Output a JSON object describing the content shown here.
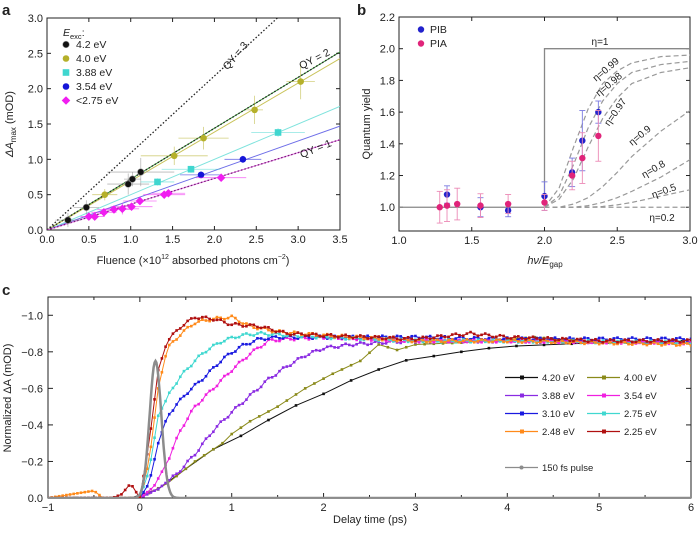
{
  "chart_data": [
    {
      "type": "scatter",
      "panel_label": "a",
      "xlabel": {
        "main": "Fluence (×10",
        "sup": "12",
        "mid": " absorbed photons cm",
        "sup2": "−2",
        "end": ")"
      },
      "ylabel": {
        "pre": "ΔA",
        "sub": "max",
        "post": " (mOD)"
      },
      "xlim": [
        0,
        3.5
      ],
      "ylim": [
        0,
        3.0
      ],
      "xticks": [
        "0.0",
        "0.5",
        "1.0",
        "1.5",
        "2.0",
        "2.5",
        "3.0",
        "3.5"
      ],
      "yticks": [
        "0.0",
        "0.5",
        "1.0",
        "1.5",
        "2.0",
        "2.5",
        "3.0"
      ],
      "legend_title": {
        "main": "E",
        "sub": "exc",
        "end": ":"
      },
      "legend_position": "top-left",
      "series": [
        {
          "name": "4.2 eV",
          "color": "#111111",
          "marker": "circle",
          "points": [
            [
              0.25,
              0.14,
              0.15,
              0.1
            ],
            [
              0.47,
              0.32,
              0.15,
              0.1
            ],
            [
              0.97,
              0.65,
              0.25,
              0.15
            ],
            [
              1.02,
              0.72,
              0.1,
              0.1
            ],
            [
              1.12,
              0.82,
              0.4,
              0.2
            ]
          ]
        },
        {
          "name": "4.0 eV",
          "color": "#b5b02a",
          "marker": "circle",
          "points": [
            [
              0.69,
              0.5,
              0.15,
              0.08
            ],
            [
              1.52,
              1.05,
              0.4,
              0.13
            ],
            [
              1.87,
              1.3,
              0.3,
              0.16
            ],
            [
              2.48,
              1.7,
              0.1,
              0.2
            ],
            [
              3.03,
              2.1,
              0.17,
              0.25
            ]
          ]
        },
        {
          "name": "3.88 eV",
          "color": "#3fd6cf",
          "marker": "square",
          "points": [
            [
              1.32,
              0.68,
              0.2,
              0.05
            ],
            [
              1.72,
              0.86,
              0.35,
              0.05
            ],
            [
              2.76,
              1.38,
              0.32,
              0.06
            ]
          ]
        },
        {
          "name": "3.54 eV",
          "color": "#1515d8",
          "marker": "circle",
          "points": [
            [
              1.84,
              0.78,
              0.25,
              0.05
            ],
            [
              2.34,
              1.0,
              0.22,
              0.05
            ]
          ]
        },
        {
          "name": "<2.75 eV",
          "color": "#f01ef0",
          "marker": "diamond",
          "points": [
            [
              0.5,
              0.19,
              0.1,
              0.04
            ],
            [
              0.57,
              0.19,
              0.12,
              0.05
            ],
            [
              0.68,
              0.25,
              0.15,
              0.05
            ],
            [
              0.8,
              0.29,
              0.2,
              0.05
            ],
            [
              0.9,
              0.3,
              0.2,
              0.08
            ],
            [
              1.01,
              0.33,
              0.25,
              0.05
            ],
            [
              1.11,
              0.41,
              0.2,
              0.05
            ],
            [
              1.4,
              0.5,
              0.25,
              0.05
            ],
            [
              1.45,
              0.52,
              0.2,
              0.05
            ],
            [
              2.08,
              0.74,
              0.3,
              0.05
            ]
          ]
        }
      ],
      "fits": [
        {
          "slope": 0.72,
          "color": "#3a9a3a"
        },
        {
          "slope": 0.693,
          "color": "#c9c35a"
        },
        {
          "slope": 0.5,
          "color": "#7fe3dd"
        },
        {
          "slope": 0.42,
          "color": "#6e6ee8"
        },
        {
          "slope": 0.365,
          "color": "#e070e0"
        }
      ],
      "reference_lines": [
        {
          "label": "QY = 3",
          "slope": 1.09,
          "color": "#222222"
        },
        {
          "label": "QY = 2",
          "slope": 0.72,
          "color": "#222222"
        },
        {
          "label": "QY = 1",
          "slope": 0.365,
          "color": "#7a1a7a"
        }
      ]
    },
    {
      "type": "scatter",
      "panel_label": "b",
      "xlabel": {
        "main": "hν/E",
        "sub": "gap"
      },
      "ylabel": "Quantum yield",
      "xlim": [
        1.0,
        3.0
      ],
      "ylim": [
        0.85,
        2.2
      ],
      "xticks": [
        "1.0",
        "1.5",
        "2.0",
        "2.5",
        "3.0"
      ],
      "yticks": [
        "1.0",
        "1.2",
        "1.4",
        "1.6",
        "1.8",
        "2.0",
        "2.2"
      ],
      "legend_position": "top-left",
      "series": [
        {
          "name": "PIB",
          "color": "#2222cc",
          "errcolor": "#7a7ae0",
          "points": [
            [
              1.33,
              1.08,
              0.055
            ],
            [
              1.56,
              1.0,
              0.06
            ],
            [
              1.75,
              0.98,
              0.04
            ],
            [
              2.0,
              1.07,
              0.09
            ],
            [
              2.19,
              1.22,
              0.09
            ],
            [
              2.26,
              1.42,
              0.19
            ],
            [
              2.37,
              1.6,
              0.07
            ]
          ]
        },
        {
          "name": "PIA",
          "color": "#e0247a",
          "errcolor": "#ec8ab6",
          "points": [
            [
              1.28,
              1.0,
              0.1
            ],
            [
              1.33,
              1.01,
              0.1
            ],
            [
              1.4,
              1.02,
              0.1
            ],
            [
              1.56,
              1.01,
              0.075
            ],
            [
              1.75,
              1.02,
              0.06
            ],
            [
              2.0,
              1.03,
              0.05
            ],
            [
              2.19,
              1.2,
              0.09
            ],
            [
              2.26,
              1.31,
              0.16
            ],
            [
              2.37,
              1.45,
              0.16
            ]
          ]
        }
      ],
      "model_x": [
        2.0,
        2.1,
        2.2,
        2.3,
        2.4,
        2.5,
        2.6,
        2.8,
        3.0
      ],
      "model_curves": [
        {
          "label": "η=0.99",
          "y": [
            1.0,
            1.12,
            1.38,
            1.62,
            1.78,
            1.86,
            1.91,
            1.95,
            1.96
          ]
        },
        {
          "label": "η=0.98",
          "y": [
            1.0,
            1.07,
            1.27,
            1.5,
            1.67,
            1.78,
            1.85,
            1.9,
            1.92
          ]
        },
        {
          "label": "η=0.97",
          "y": [
            1.0,
            1.05,
            1.18,
            1.38,
            1.56,
            1.69,
            1.78,
            1.85,
            1.88
          ]
        },
        {
          "label": "η=0.9",
          "y": [
            1.0,
            1.0,
            1.02,
            1.06,
            1.13,
            1.22,
            1.32,
            1.48,
            1.61
          ]
        },
        {
          "label": "η=0.8",
          "y": [
            1.0,
            1.0,
            1.0,
            1.01,
            1.03,
            1.06,
            1.1,
            1.19,
            1.3
          ]
        },
        {
          "label": "η=0.5",
          "y": [
            1.0,
            1.0,
            1.0,
            1.0,
            1.005,
            1.015,
            1.03,
            1.07,
            1.11
          ]
        },
        {
          "label": "η=0.2",
          "y": [
            1.0,
            1.0,
            1.0,
            1.0,
            1.0,
            1.0,
            1.0,
            1.0,
            1.0
          ]
        }
      ],
      "step_curve": {
        "label": "η=1",
        "threshold": 2.0,
        "low": 1.0,
        "high": 2.0
      }
    },
    {
      "type": "line",
      "panel_label": "c",
      "xlabel": "Delay time (ps)",
      "ylabel": "Normalized ΔA (mOD)",
      "xlim": [
        -1,
        6
      ],
      "ylim": [
        0,
        -1.1
      ],
      "xticks": [
        "−1",
        "0",
        "1",
        "2",
        "3",
        "4",
        "5",
        "6"
      ],
      "yticks": [
        "0.0",
        "−0.2",
        "−0.4",
        "−0.6",
        "−0.8",
        "−1.0"
      ],
      "legend_position": "right",
      "series": [
        {
          "name": "4.20 eV",
          "color": "#111111",
          "points": [
            [
              -1,
              0
            ],
            [
              0,
              0
            ],
            [
              0.25,
              -0.06
            ],
            [
              0.6,
              -0.2
            ],
            [
              0.9,
              -0.3
            ],
            [
              1.2,
              -0.36
            ],
            [
              1.5,
              -0.46
            ],
            [
              1.8,
              -0.53
            ],
            [
              2.1,
              -0.59
            ],
            [
              2.4,
              -0.67
            ],
            [
              2.7,
              -0.72
            ],
            [
              3,
              -0.77
            ],
            [
              3.3,
              -0.78
            ],
            [
              3.6,
              -0.81
            ],
            [
              4,
              -0.83
            ],
            [
              4.5,
              -0.84
            ],
            [
              5,
              -0.85
            ],
            [
              6,
              -0.86
            ]
          ]
        },
        {
          "name": "4.00 eV",
          "color": "#8a8a1a",
          "points": [
            [
              -1,
              0
            ],
            [
              0,
              0
            ],
            [
              0.3,
              -0.08
            ],
            [
              0.6,
              -0.2
            ],
            [
              0.9,
              -0.3
            ],
            [
              1,
              -0.35
            ],
            [
              1.2,
              -0.42
            ],
            [
              1.5,
              -0.5
            ],
            [
              1.8,
              -0.6
            ],
            [
              2.1,
              -0.68
            ],
            [
              2.4,
              -0.75
            ],
            [
              2.6,
              -0.84
            ],
            [
              2.8,
              -0.81
            ],
            [
              3,
              -0.84
            ],
            [
              3.5,
              -0.85
            ],
            [
              4.3,
              -0.88
            ],
            [
              5,
              -0.85
            ],
            [
              6,
              -0.85
            ]
          ]
        },
        {
          "name": "3.88 eV",
          "color": "#8a2be2",
          "points": [
            [
              -1,
              0
            ],
            [
              0,
              0
            ],
            [
              0.2,
              -0.05
            ],
            [
              0.4,
              -0.13
            ],
            [
              0.6,
              -0.24
            ],
            [
              0.8,
              -0.37
            ],
            [
              1,
              -0.47
            ],
            [
              1.2,
              -0.56
            ],
            [
              1.4,
              -0.65
            ],
            [
              1.6,
              -0.72
            ],
            [
              1.8,
              -0.78
            ],
            [
              2,
              -0.82
            ],
            [
              2.3,
              -0.84
            ],
            [
              2.6,
              -0.85
            ],
            [
              3,
              -0.86
            ],
            [
              4,
              -0.86
            ],
            [
              6,
              -0.85
            ]
          ]
        },
        {
          "name": "3.54 eV",
          "color": "#f020e0",
          "points": [
            [
              -1,
              0
            ],
            [
              0,
              0
            ],
            [
              0.15,
              -0.06
            ],
            [
              0.3,
              -0.2
            ],
            [
              0.45,
              -0.38
            ],
            [
              0.6,
              -0.5
            ],
            [
              0.8,
              -0.6
            ],
            [
              1,
              -0.7
            ],
            [
              1.2,
              -0.79
            ],
            [
              1.4,
              -0.86
            ],
            [
              1.6,
              -0.87
            ],
            [
              2,
              -0.88
            ],
            [
              3,
              -0.86
            ],
            [
              4,
              -0.86
            ],
            [
              6,
              -0.85
            ]
          ]
        },
        {
          "name": "3.10 eV",
          "color": "#1a1ae0",
          "points": [
            [
              -1,
              0
            ],
            [
              0,
              0
            ],
            [
              0.1,
              -0.08
            ],
            [
              0.2,
              -0.3
            ],
            [
              0.3,
              -0.45
            ],
            [
              0.5,
              -0.57
            ],
            [
              0.7,
              -0.66
            ],
            [
              0.9,
              -0.76
            ],
            [
              1.1,
              -0.83
            ],
            [
              1.3,
              -0.87
            ],
            [
              1.5,
              -0.88
            ],
            [
              2,
              -0.88
            ],
            [
              3,
              -0.88
            ],
            [
              4,
              -0.87
            ],
            [
              6,
              -0.87
            ]
          ]
        },
        {
          "name": "2.75 eV",
          "color": "#40d8d0",
          "points": [
            [
              -1,
              0
            ],
            [
              0,
              0
            ],
            [
              0.1,
              -0.15
            ],
            [
              0.2,
              -0.45
            ],
            [
              0.35,
              -0.6
            ],
            [
              0.5,
              -0.7
            ],
            [
              0.7,
              -0.8
            ],
            [
              0.9,
              -0.86
            ],
            [
              1.1,
              -0.89
            ],
            [
              1.3,
              -0.9
            ],
            [
              2,
              -0.88
            ],
            [
              3,
              -0.86
            ],
            [
              4,
              -0.86
            ],
            [
              6,
              -0.85
            ]
          ]
        },
        {
          "name": "2.48 eV",
          "color": "#ff8a1a",
          "points": [
            [
              -1,
              0
            ],
            [
              -0.5,
              -0.04
            ],
            [
              -0.4,
              0
            ],
            [
              0,
              0
            ],
            [
              0.1,
              -0.2
            ],
            [
              0.2,
              -0.6
            ],
            [
              0.3,
              -0.82
            ],
            [
              0.45,
              -0.9
            ],
            [
              0.6,
              -0.96
            ],
            [
              0.8,
              -0.98
            ],
            [
              1,
              -0.99
            ],
            [
              1.2,
              -0.94
            ],
            [
              1.5,
              -0.91
            ],
            [
              2,
              -0.89
            ],
            [
              3,
              -0.86
            ],
            [
              4,
              -0.86
            ],
            [
              5,
              -0.85
            ],
            [
              6,
              -0.84
            ]
          ]
        },
        {
          "name": "2.25 eV",
          "color": "#b01010",
          "points": [
            [
              -1,
              0
            ],
            [
              -0.3,
              0
            ],
            [
              -0.2,
              -0.02
            ],
            [
              -0.1,
              -0.08
            ],
            [
              0,
              0
            ],
            [
              0.1,
              -0.3
            ],
            [
              0.2,
              -0.7
            ],
            [
              0.3,
              -0.86
            ],
            [
              0.45,
              -0.94
            ],
            [
              0.6,
              -0.99
            ],
            [
              0.8,
              -0.98
            ],
            [
              1,
              -0.95
            ],
            [
              1.3,
              -0.94
            ],
            [
              1.6,
              -0.9
            ],
            [
              2,
              -0.89
            ],
            [
              3,
              -0.87
            ],
            [
              3.6,
              -0.9
            ],
            [
              4,
              -0.88
            ],
            [
              5,
              -0.86
            ],
            [
              6,
              -0.86
            ]
          ]
        }
      ],
      "pulse": {
        "name": "150 fs pulse",
        "color": "#8c8c8c",
        "center": 0.17,
        "peak": -0.75,
        "fwhm": 0.15
      }
    }
  ]
}
